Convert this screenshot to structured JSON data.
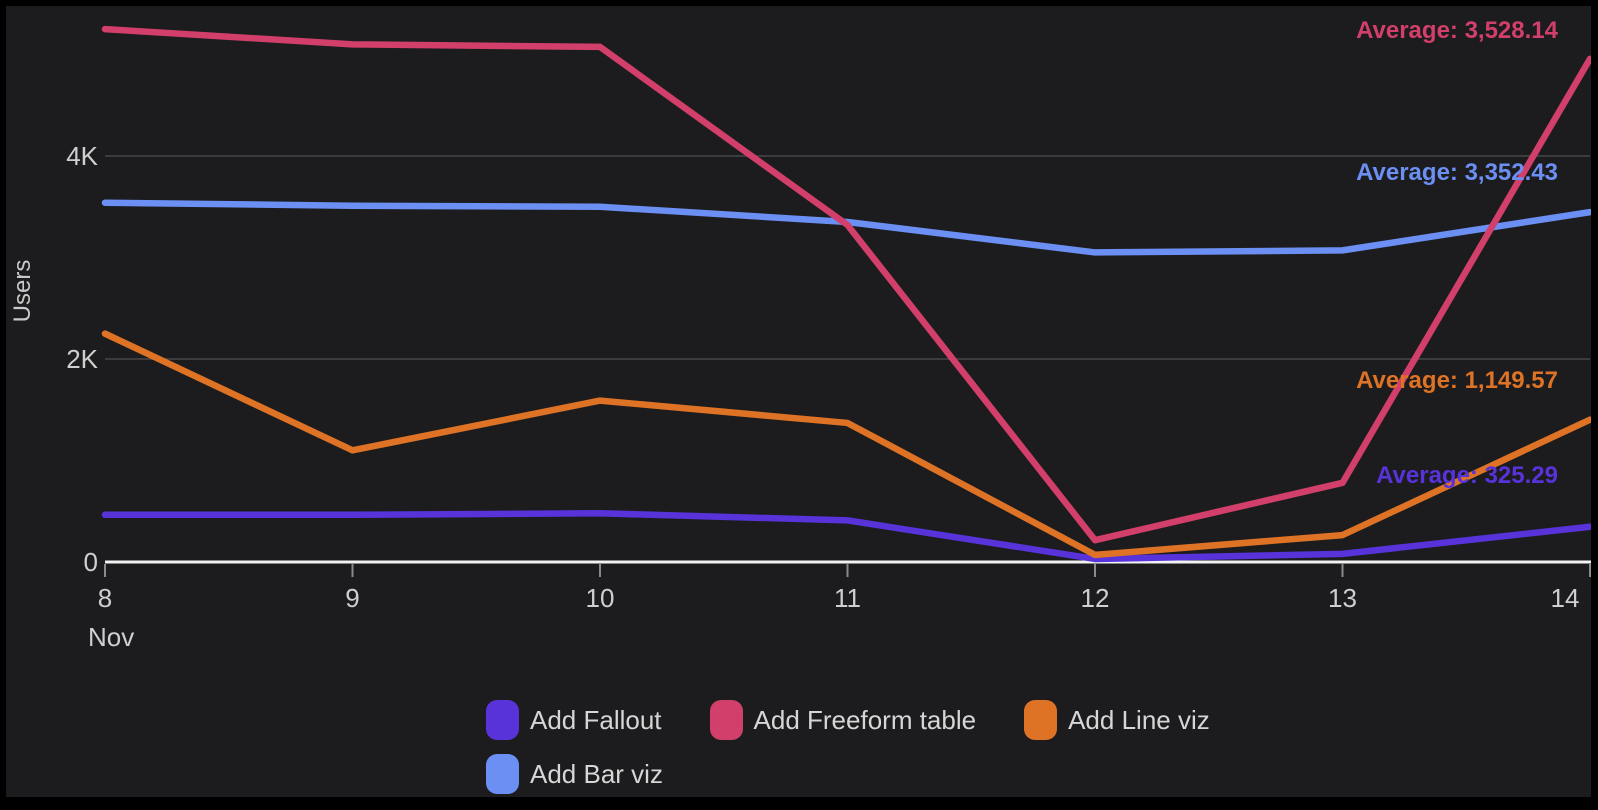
{
  "chart_data": {
    "type": "line",
    "title": "",
    "ylabel": "Users",
    "xlabel": "",
    "x_month_label": "Nov",
    "categories": [
      "8",
      "9",
      "10",
      "11",
      "12",
      "13",
      "14"
    ],
    "y_ticks": [
      {
        "label": "0",
        "value": 0
      },
      {
        "label": "2K",
        "value": 2000
      },
      {
        "label": "4K",
        "value": 4000
      }
    ],
    "ylim": [
      0,
      5400
    ],
    "grid": "horizontal",
    "legend_position": "bottom",
    "series": [
      {
        "name": "Add Fallout",
        "color": "#5733d9",
        "values": [
          465,
          465,
          480,
          410,
          30,
          80,
          347
        ],
        "average": 325.29,
        "average_label": "Average: 325.29"
      },
      {
        "name": "Add Freeform table",
        "color": "#d23f6a",
        "values": [
          5250,
          5100,
          5075,
          3320,
          215,
          780,
          4957
        ],
        "average": 3528.14,
        "average_label": "Average: 3,528.14"
      },
      {
        "name": "Add Line viz",
        "color": "#de7326",
        "values": [
          2250,
          1100,
          1590,
          1370,
          70,
          265,
          1402
        ],
        "average": 1149.57,
        "average_label": "Average: 1,149.57"
      },
      {
        "name": "Add Bar viz",
        "color": "#6b8ff2",
        "values": [
          3540,
          3510,
          3500,
          3350,
          3050,
          3070,
          3447
        ],
        "average": 3352.43,
        "average_label": "Average: 3,352.43"
      }
    ],
    "draw_order": [
      "Add Fallout",
      "Add Bar viz",
      "Add Line viz",
      "Add Freeform table"
    ],
    "colors": {
      "background": "#1c1c1e",
      "frame": "#000000",
      "gridline": "#3c3c3e",
      "axis_line": "#f2f2f2",
      "tick_mark": "#8a8a8a",
      "label_text": "#cfcfcf"
    }
  }
}
